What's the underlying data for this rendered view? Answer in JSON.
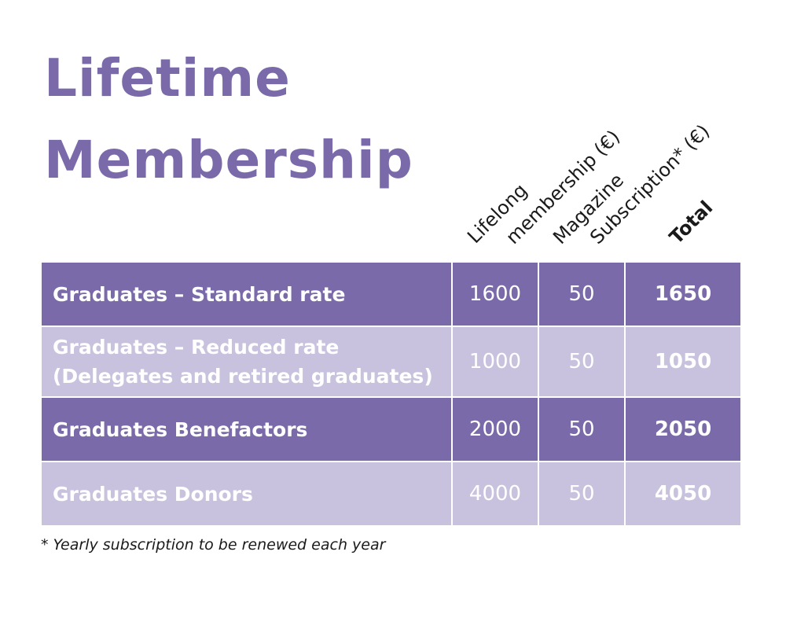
{
  "title": {
    "line1": "Lifetime",
    "line2": "Membership"
  },
  "columns": {
    "lifelong_line1": "Lifelong",
    "lifelong_line2": "membership (€)",
    "magazine_line1": "Magazine",
    "magazine_line2": "Subscription* (€)",
    "total": "Total"
  },
  "rows": [
    {
      "label_line1": "Graduates – Standard rate",
      "label_line2": "",
      "lifelong": "1600",
      "magazine": "50",
      "total": "1650"
    },
    {
      "label_line1": "Graduates – Reduced rate",
      "label_line2": "(Delegates and retired graduates)",
      "lifelong": "1000",
      "magazine": "50",
      "total": "1050"
    },
    {
      "label_line1": "Graduates Benefactors",
      "label_line2": "",
      "lifelong": "2000",
      "magazine": "50",
      "total": "2050"
    },
    {
      "label_line1": "Graduates Donors",
      "label_line2": "",
      "lifelong": "4000",
      "magazine": "50",
      "total": "4050"
    }
  ],
  "footnote": "* Yearly subscription to be renewed each year",
  "colors": {
    "accent": "#7a6aa9",
    "accent_light": "#c8c2de"
  }
}
